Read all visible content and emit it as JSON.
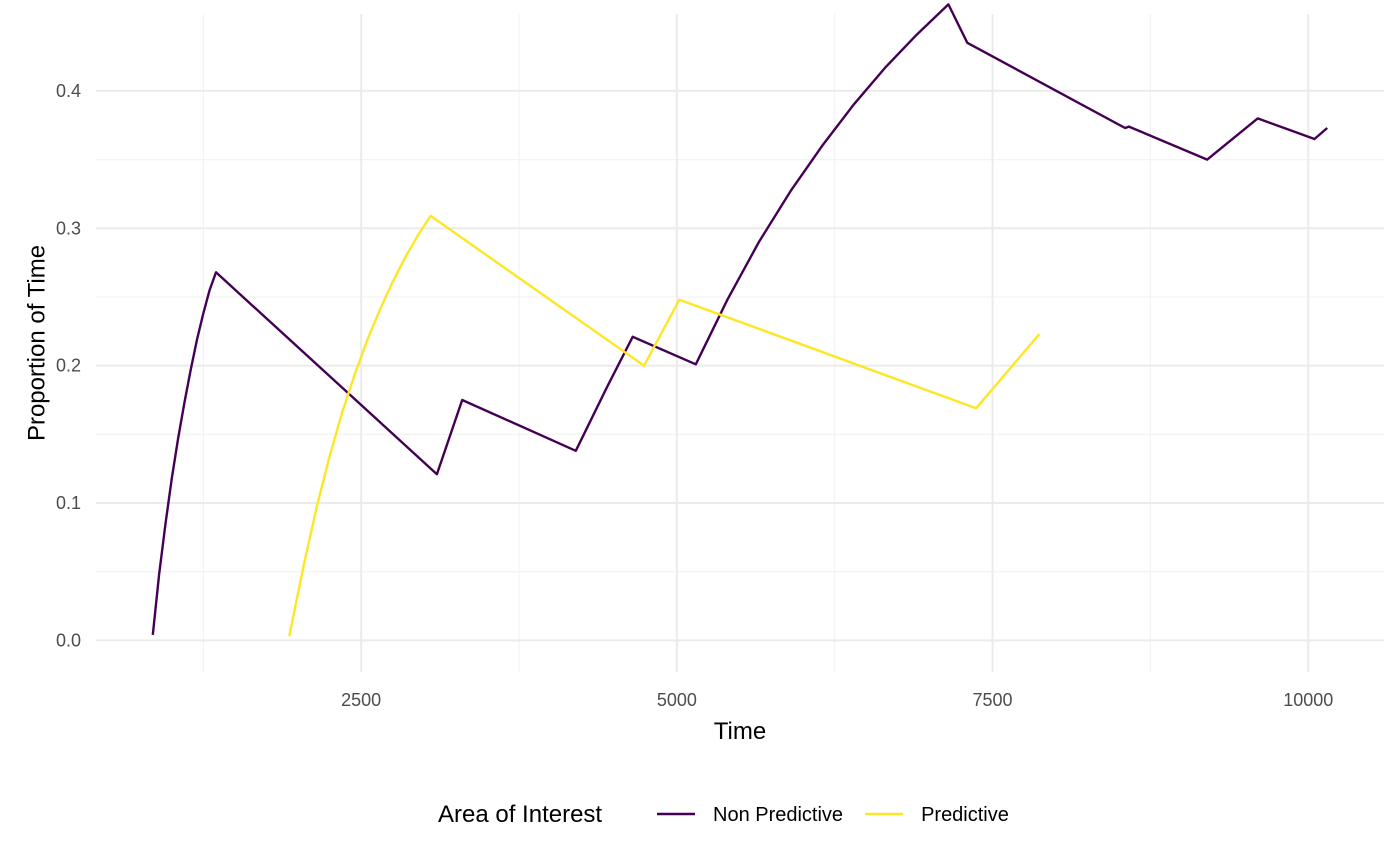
{
  "chart_data": {
    "type": "line",
    "title": "",
    "xlabel": "Time",
    "ylabel": "Proportion of Time",
    "xlim": [
      400,
      10600
    ],
    "ylim": [
      -0.023,
      0.456
    ],
    "x_ticks": [
      2500,
      5000,
      7500,
      10000
    ],
    "x_tick_labels": [
      "2500",
      "5000",
      "7500",
      "10000"
    ],
    "x_minor_ticks": [
      1250,
      3750,
      6250,
      8750
    ],
    "y_ticks": [
      0.0,
      0.1,
      0.2,
      0.3,
      0.4
    ],
    "y_tick_labels": [
      "0.0",
      "0.1",
      "0.2",
      "0.3",
      "0.4"
    ],
    "y_minor_ticks": [
      0.05,
      0.15,
      0.25,
      0.35
    ],
    "grid": true,
    "legend": {
      "title": "Area of Interest",
      "position": "bottom"
    },
    "series": [
      {
        "name": "Non Predictive",
        "color": "#440154",
        "x": [
          850,
          900,
          950,
          1000,
          1050,
          1100,
          1150,
          1200,
          1250,
          1300,
          1350,
          3100,
          3300,
          4200,
          4450,
          4650,
          5150,
          5400,
          5650,
          5900,
          6150,
          6400,
          6650,
          6900,
          7150,
          7300,
          8550,
          8580,
          9200,
          9600,
          10050,
          10150
        ],
        "y": [
          0.004,
          0.048,
          0.085,
          0.118,
          0.147,
          0.173,
          0.197,
          0.219,
          0.238,
          0.255,
          0.268,
          0.121,
          0.175,
          0.138,
          0.185,
          0.221,
          0.201,
          0.248,
          0.29,
          0.327,
          0.36,
          0.39,
          0.417,
          0.441,
          0.463,
          0.435,
          0.373,
          0.374,
          0.35,
          0.38,
          0.365,
          0.373
        ]
      },
      {
        "name": "Predictive",
        "color": "#fde725",
        "x": [
          1930,
          2050,
          2150,
          2250,
          2350,
          2450,
          2550,
          2650,
          2750,
          2850,
          2950,
          3050,
          4740,
          5020,
          7370,
          7870
        ],
        "y": [
          0.003,
          0.057,
          0.098,
          0.134,
          0.166,
          0.194,
          0.219,
          0.241,
          0.261,
          0.279,
          0.295,
          0.309,
          0.2,
          0.248,
          0.169,
          0.223
        ]
      }
    ]
  }
}
